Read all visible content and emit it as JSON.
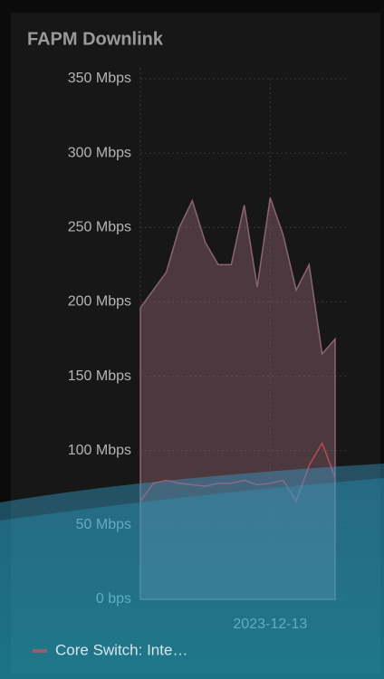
{
  "chart_data": {
    "type": "area",
    "title": "FAPM Downlink",
    "categories": [
      null,
      null,
      null,
      null,
      null,
      null,
      null,
      null,
      null,
      null,
      "2023-12-13",
      null,
      null,
      null,
      null,
      null
    ],
    "series": [
      {
        "name": "Core Switch: Inte…",
        "color": "#8c6470",
        "values": [
          196,
          208,
          220,
          250,
          268,
          240,
          225,
          225,
          265,
          210,
          270,
          245,
          208,
          225,
          165,
          175
        ]
      },
      {
        "color": "#b8485c",
        "values": [
          66,
          78,
          80,
          78,
          77,
          76,
          78,
          78,
          80,
          77,
          78,
          80,
          66,
          90,
          105,
          82
        ]
      }
    ],
    "ylim": [
      0,
      350
    ],
    "yticks": [
      {
        "value": 0,
        "label": "0 bps"
      },
      {
        "value": 50,
        "label": "50 Mbps"
      },
      {
        "value": 100,
        "label": "100 Mbps"
      },
      {
        "value": 150,
        "label": "150 Mbps"
      },
      {
        "value": 200,
        "label": "200 Mbps"
      },
      {
        "value": 250,
        "label": "250 Mbps"
      },
      {
        "value": 300,
        "label": "300 Mbps"
      },
      {
        "value": 350,
        "label": "350 Mbps"
      }
    ],
    "grid": true
  }
}
